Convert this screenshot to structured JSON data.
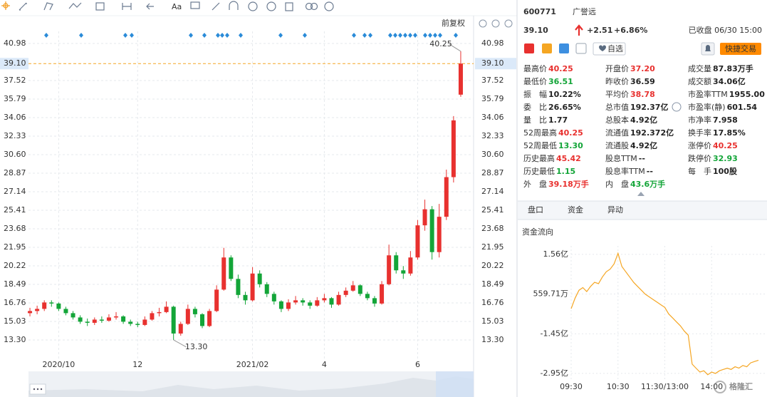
{
  "chart_data": [
    {
      "type": "candlestick",
      "label": "前复权",
      "categories": [
        null,
        null,
        null,
        null,
        "2020/10",
        null,
        null,
        null,
        null,
        null,
        null,
        null,
        null,
        null,
        null,
        "12",
        null,
        null,
        null,
        null,
        null,
        null,
        null,
        null,
        null,
        null,
        null,
        null,
        null,
        null,
        null,
        "2021/02",
        null,
        null,
        null,
        null,
        null,
        null,
        null,
        null,
        null,
        "4",
        null,
        null,
        null,
        null,
        null,
        null,
        null,
        null,
        null,
        null,
        null,
        null,
        "6",
        null,
        null,
        null,
        null,
        null,
        null
      ],
      "ohlc": [
        [
          15.8,
          16.3,
          15.5,
          16.0
        ],
        [
          16.0,
          16.5,
          15.7,
          16.2
        ],
        [
          16.2,
          17.0,
          16.0,
          16.8
        ],
        [
          16.8,
          17.0,
          16.4,
          16.7
        ],
        [
          16.7,
          16.8,
          16.0,
          16.2
        ],
        [
          16.2,
          16.4,
          15.6,
          15.8
        ],
        [
          15.8,
          16.0,
          15.2,
          15.4
        ],
        [
          15.4,
          15.6,
          14.8,
          15.0
        ],
        [
          15.0,
          15.3,
          14.6,
          14.9
        ],
        [
          14.9,
          15.4,
          14.7,
          15.2
        ],
        [
          15.2,
          15.5,
          14.9,
          15.1
        ],
        [
          15.1,
          15.7,
          15.0,
          15.4
        ],
        [
          15.4,
          15.9,
          15.2,
          15.5
        ],
        [
          15.5,
          15.6,
          14.8,
          15.0
        ],
        [
          15.0,
          15.2,
          14.6,
          14.8
        ],
        [
          14.8,
          15.0,
          14.5,
          14.7
        ],
        [
          14.7,
          15.5,
          14.6,
          15.2
        ],
        [
          15.2,
          16.0,
          15.1,
          15.8
        ],
        [
          15.8,
          16.3,
          15.5,
          15.9
        ],
        [
          15.9,
          16.9,
          15.8,
          16.4
        ],
        [
          16.4,
          16.5,
          13.3,
          13.9
        ],
        [
          13.9,
          15.0,
          13.7,
          14.8
        ],
        [
          14.8,
          16.6,
          14.7,
          16.2
        ],
        [
          16.2,
          16.4,
          15.4,
          15.7
        ],
        [
          15.7,
          15.8,
          14.4,
          14.6
        ],
        [
          14.6,
          16.2,
          14.5,
          16.0
        ],
        [
          16.0,
          18.4,
          15.9,
          18.0
        ],
        [
          18.0,
          21.9,
          17.9,
          21.0
        ],
        [
          21.0,
          21.2,
          18.8,
          19.0
        ],
        [
          19.0,
          19.4,
          17.2,
          17.5
        ],
        [
          17.5,
          17.8,
          16.6,
          17.0
        ],
        [
          17.0,
          20.1,
          16.9,
          19.5
        ],
        [
          19.5,
          19.8,
          18.2,
          18.5
        ],
        [
          18.5,
          18.7,
          17.3,
          17.6
        ],
        [
          17.6,
          17.8,
          16.6,
          16.9
        ],
        [
          16.9,
          17.0,
          15.9,
          16.2
        ],
        [
          16.2,
          17.1,
          16.0,
          16.8
        ],
        [
          16.8,
          17.4,
          16.6,
          17.0
        ],
        [
          17.0,
          17.2,
          16.5,
          16.8
        ],
        [
          16.8,
          17.0,
          16.2,
          16.5
        ],
        [
          16.5,
          17.3,
          16.4,
          17.0
        ],
        [
          17.0,
          17.6,
          16.8,
          17.2
        ],
        [
          17.2,
          17.3,
          16.3,
          16.6
        ],
        [
          16.6,
          17.8,
          16.5,
          17.5
        ],
        [
          17.5,
          18.2,
          17.3,
          17.9
        ],
        [
          17.9,
          18.8,
          17.8,
          18.4
        ],
        [
          18.4,
          18.5,
          17.4,
          17.6
        ],
        [
          17.6,
          17.8,
          17.0,
          17.2
        ],
        [
          17.2,
          17.4,
          16.4,
          16.7
        ],
        [
          16.7,
          18.8,
          16.6,
          18.5
        ],
        [
          18.5,
          22.2,
          18.4,
          21.2
        ],
        [
          21.2,
          21.5,
          19.5,
          19.8
        ],
        [
          19.8,
          20.2,
          19.0,
          19.5
        ],
        [
          19.5,
          21.6,
          19.3,
          21.0
        ],
        [
          21.0,
          24.5,
          20.8,
          24.0
        ],
        [
          24.0,
          26.4,
          23.5,
          25.5
        ],
        [
          25.5,
          25.8,
          20.8,
          21.5
        ],
        [
          21.5,
          26.0,
          21.0,
          24.8
        ],
        [
          24.8,
          29.2,
          24.5,
          28.5
        ],
        [
          28.5,
          34.2,
          28.0,
          33.8
        ],
        [
          36.2,
          40.25,
          36.0,
          39.1
        ]
      ],
      "up_color": "#e8312f",
      "down_color": "#13a538",
      "ylim": [
        11.5,
        42.11
      ],
      "yticks": [
        40.98,
        37.52,
        35.79,
        34.06,
        32.33,
        {
          "value": 30.6,
          "label": "30.60"
        },
        28.87,
        27.14,
        25.41,
        23.68,
        21.95,
        20.22,
        18.49,
        16.76,
        15.03,
        {
          "value": 13.3,
          "label": "13.30"
        }
      ],
      "grid": true,
      "price_line": {
        "value": 39.1,
        "label": "39.10"
      },
      "annotations": [
        {
          "value": 40.25,
          "label": "40.25"
        },
        {
          "value": 13.3,
          "label": "13.30"
        }
      ]
    },
    {
      "type": "line",
      "title": "资金流向",
      "categories": [
        "09:30",
        null,
        null,
        null,
        null,
        null,
        null,
        null,
        null,
        null,
        null,
        null,
        "10:30",
        null,
        null,
        null,
        null,
        null,
        null,
        null,
        null,
        null,
        null,
        null,
        "11:30/13:00",
        null,
        null,
        null,
        null,
        null,
        null,
        null,
        null,
        null,
        null,
        null,
        "14:00",
        null,
        null,
        null,
        null,
        null,
        null,
        null,
        null,
        null,
        null,
        null,
        null
      ],
      "series": [
        {
          "color": "#f5a623",
          "values": [
            -0.5,
            -0.1,
            0.2,
            0.3,
            0.15,
            0.35,
            0.5,
            0.45,
            0.7,
            0.9,
            1.0,
            1.2,
            1.6,
            1.1,
            0.9,
            0.7,
            0.5,
            0.35,
            0.2,
            0.05,
            -0.05,
            -0.15,
            -0.25,
            -0.35,
            -0.45,
            -0.7,
            -0.85,
            -1.0,
            -1.15,
            -1.35,
            -1.5,
            -2.6,
            -2.75,
            -2.9,
            -2.85,
            -3.0,
            -2.9,
            -2.95,
            -2.85,
            -2.8,
            -2.75,
            -2.8,
            -2.7,
            -2.75,
            -2.65,
            -2.7,
            -2.55,
            -2.5,
            -2.45
          ]
        }
      ],
      "ylim": [
        -3.25,
        1.88
      ],
      "yticks": [
        {
          "value": 1.56,
          "label": "1.56亿"
        },
        {
          "value": 0.0559711,
          "label": "559.71万"
        },
        {
          "value": -1.45,
          "label": "-1.45亿"
        },
        {
          "value": -2.95,
          "label": "-2.95亿"
        }
      ],
      "grid": true
    }
  ],
  "toolbar": {
    "font_button": "Aa"
  },
  "quote": {
    "code": "600771",
    "name": "广誉远",
    "price": "39.10",
    "change": "+2.51",
    "change_pct": "+6.86%",
    "status": "已收盘 06/30 15:00",
    "watch_button": "自选",
    "trade_button": "快捷交易",
    "color": "#e8312f"
  },
  "stats": {
    "rows": [
      [
        {
          "label": "最高价",
          "value": "40.25",
          "color": "#e8312f"
        },
        {
          "label": "开盘价",
          "value": "37.20",
          "color": "#e8312f"
        },
        {
          "label": "成交量",
          "value": "87.83万手",
          "color": "#222222"
        }
      ],
      [
        {
          "label": "最低价",
          "value": "36.51",
          "color": "#13a538"
        },
        {
          "label": "昨收价",
          "value": "36.59",
          "color": "#222222"
        },
        {
          "label": "成交额",
          "value": "34.06亿",
          "color": "#222222"
        }
      ],
      [
        {
          "label": "振　幅",
          "value": "10.22%",
          "color": "#222222"
        },
        {
          "label": "平均价",
          "value": "38.78",
          "color": "#e8312f"
        },
        {
          "label": "市盈率TTM",
          "value": "1955.00",
          "color": "#222222"
        }
      ],
      [
        {
          "label": "委　比",
          "value": "26.65%",
          "color": "#222222"
        },
        {
          "label": "总市值",
          "value": "192.37亿",
          "color": "#222222"
        },
        {
          "label": "市盈率(静)",
          "value": "601.54",
          "color": "#222222"
        }
      ],
      [
        {
          "label": "量　比",
          "value": "1.77",
          "color": "#222222"
        },
        {
          "label": "总股本",
          "value": "4.92亿",
          "color": "#222222"
        },
        {
          "label": "市净率",
          "value": "7.958",
          "color": "#222222"
        }
      ],
      [
        {
          "label": "52周最高",
          "value": "40.25",
          "color": "#e8312f"
        },
        {
          "label": "流通值",
          "value": "192.372亿",
          "color": "#222222"
        },
        {
          "label": "换手率",
          "value": "17.85%",
          "color": "#222222"
        }
      ],
      [
        {
          "label": "52周最低",
          "value": "13.30",
          "color": "#13a538"
        },
        {
          "label": "流通股",
          "value": "4.92亿",
          "color": "#222222"
        },
        {
          "label": "涨停价",
          "value": "40.25",
          "color": "#e8312f"
        }
      ],
      [
        {
          "label": "历史最高",
          "value": "45.42",
          "color": "#e8312f"
        },
        {
          "label": "股息TTM",
          "value": "--",
          "color": "#222222"
        },
        {
          "label": "跌停价",
          "value": "32.93",
          "color": "#13a538"
        }
      ],
      [
        {
          "label": "历史最低",
          "value": "1.15",
          "color": "#13a538"
        },
        {
          "label": "股息率TTM",
          "value": "--",
          "color": "#222222"
        },
        {
          "label": "每　手",
          "value": "100股",
          "color": "#222222"
        }
      ],
      [
        {
          "label": "外　盘",
          "value": "39.18万手",
          "color": "#e8312f"
        },
        {
          "label": "内　盘",
          "value": "43.6万手",
          "color": "#13a538"
        }
      ]
    ]
  },
  "tabs": {
    "items": [
      "盘口",
      "资金",
      "异动"
    ],
    "active": 1,
    "active_color": "#ff8a00"
  },
  "watermark": "格隆汇"
}
